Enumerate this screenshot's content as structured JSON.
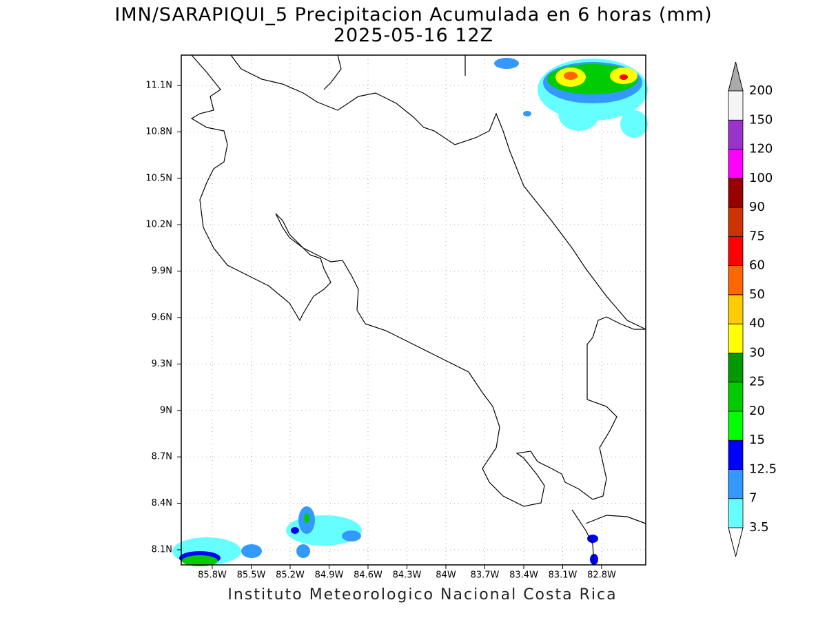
{
  "header": {
    "title": "IMN/SARAPIQUI_5 Precipitacion Acumulada en 6 horas (mm)",
    "subtitle": "2025-05-16 12Z"
  },
  "map": {
    "x_labels": [
      "85.8W",
      "85.5W",
      "85.2W",
      "84.9W",
      "84.6W",
      "84.3W",
      "84W",
      "83.7W",
      "83.4W",
      "83.1W",
      "82.8W"
    ],
    "y_labels": [
      "11.1N",
      "10.8N",
      "10.5N",
      "10.2N",
      "9.9N",
      "9.6N",
      "9.3N",
      "9N",
      "8.7N",
      "8.4N",
      "8.1N"
    ]
  },
  "colorbar": {
    "labels": [
      "3.5",
      "7",
      "12.5",
      "15",
      "20",
      "25",
      "30",
      "40",
      "50",
      "60",
      "75",
      "90",
      "100",
      "120",
      "150",
      "200"
    ],
    "colors": [
      "#66ffff",
      "#3399ff",
      "#0000ff",
      "#00ff00",
      "#00cc00",
      "#009900",
      "#ffff00",
      "#ffcc00",
      "#ff6600",
      "#ff0000",
      "#cc3300",
      "#990000",
      "#ff00ff",
      "#9933cc",
      "#f5f5f5"
    ],
    "under_color": "#ffffff",
    "over_color": "#aaaaaa"
  },
  "footer": "Instituto Meteorologico Nacional Costa Rica"
}
